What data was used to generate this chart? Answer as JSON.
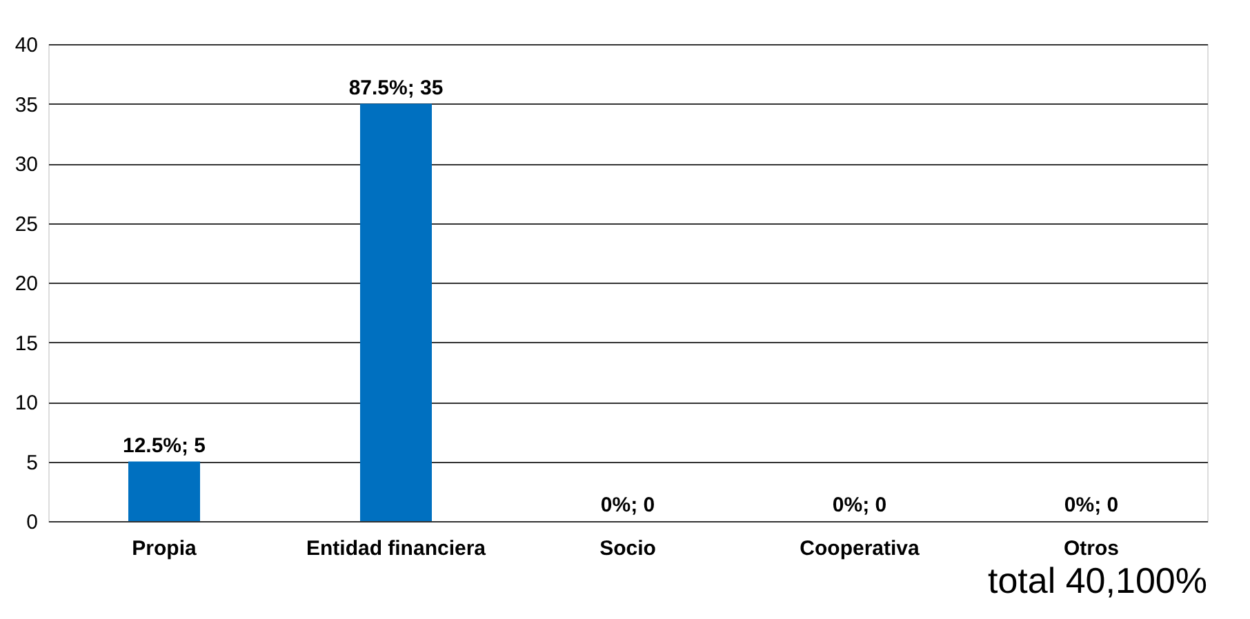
{
  "chart_data": {
    "type": "bar",
    "categories": [
      "Propia",
      "Entidad financiera",
      "Socio",
      "Cooperativa",
      "Otros"
    ],
    "values": [
      5,
      35,
      0,
      0,
      0
    ],
    "value_labels": [
      "12.5%; 5",
      "87.5%; 35",
      "0%; 0",
      "0%; 0",
      "0%; 0"
    ],
    "color": "#0070c0",
    "ylim": [
      0,
      40
    ],
    "yticks": [
      0,
      5,
      10,
      15,
      20,
      25,
      30,
      35,
      40
    ],
    "grid": "y",
    "annotations": [
      "total 40,100%"
    ]
  }
}
